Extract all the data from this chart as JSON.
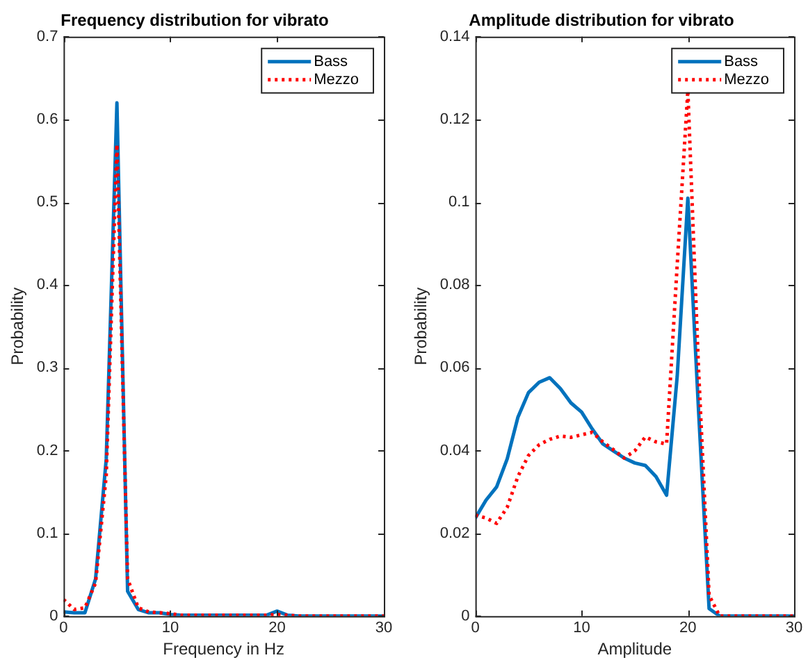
{
  "chart_data": [
    {
      "type": "line",
      "title": "Frequency distribution for vibrato",
      "xlabel": "Frequency in Hz",
      "ylabel": "Probability",
      "x": [
        0,
        1,
        2,
        3,
        4,
        5,
        6,
        7,
        8,
        9,
        10,
        11,
        12,
        13,
        14,
        15,
        16,
        17,
        18,
        19,
        20,
        21,
        22,
        23,
        24,
        25,
        26,
        27,
        28,
        29,
        30
      ],
      "xlim": [
        0,
        30
      ],
      "xticks": [
        0,
        10,
        20,
        30
      ],
      "ylim": [
        0,
        0.7
      ],
      "yticks": [
        0,
        0.1,
        0.2,
        0.3,
        0.4,
        0.5,
        0.6,
        0.7
      ],
      "grid": false,
      "legend": "top right",
      "marker": "none",
      "series": [
        {
          "name": "Bass",
          "color": "#0072bd",
          "line_style": "solid",
          "values": [
            0.005,
            0.004,
            0.004,
            0.045,
            0.19,
            0.62,
            0.03,
            0.008,
            0.004,
            0.004,
            0.002,
            0.001,
            0.001,
            0.001,
            0.001,
            0.001,
            0.001,
            0.001,
            0.001,
            0.001,
            0.006,
            0.001,
            0,
            0,
            0,
            0,
            0,
            0,
            0,
            0,
            0
          ]
        },
        {
          "name": "Mezzo",
          "color": "#ff0000",
          "line_style": "dotted",
          "values": [
            0.02,
            0.008,
            0.01,
            0.04,
            0.17,
            0.57,
            0.045,
            0.01,
            0.005,
            0.004,
            0.003,
            0.001,
            0.001,
            0.001,
            0.001,
            0.001,
            0.001,
            0.001,
            0.001,
            0.001,
            0.002,
            0.001,
            0,
            0,
            0,
            0,
            0,
            0,
            0,
            0,
            0
          ]
        }
      ]
    },
    {
      "type": "line",
      "title": "Amplitude distribution for vibrato",
      "xlabel": "Amplitude",
      "ylabel": "Probability",
      "x": [
        0,
        1,
        2,
        3,
        4,
        5,
        6,
        7,
        8,
        9,
        10,
        11,
        12,
        13,
        14,
        15,
        16,
        17,
        18,
        19,
        20,
        21,
        22,
        23,
        24,
        25,
        26,
        27,
        28,
        29,
        30
      ],
      "xlim": [
        0,
        30
      ],
      "xticks": [
        0,
        10,
        20,
        30
      ],
      "ylim": [
        0,
        0.14
      ],
      "yticks": [
        0,
        0.02,
        0.04,
        0.06,
        0.08,
        0.1,
        0.12,
        0.14
      ],
      "grid": false,
      "legend": "top right",
      "marker": "none",
      "series": [
        {
          "name": "Bass",
          "color": "#0072bd",
          "line_style": "solid",
          "values": [
            0.0237,
            0.028,
            0.0312,
            0.038,
            0.048,
            0.054,
            0.0565,
            0.0576,
            0.055,
            0.0515,
            0.0493,
            0.0452,
            0.0416,
            0.0399,
            0.0382,
            0.037,
            0.0364,
            0.0337,
            0.0292,
            0.058,
            0.101,
            0.05,
            0.0018,
            0,
            0,
            0,
            0,
            0,
            0,
            0,
            0
          ]
        },
        {
          "name": "Mezzo",
          "color": "#ff0000",
          "line_style": "dotted",
          "values": [
            0.0244,
            0.0237,
            0.0224,
            0.0263,
            0.0337,
            0.0388,
            0.0414,
            0.0427,
            0.0435,
            0.0432,
            0.0438,
            0.0444,
            0.0421,
            0.0402,
            0.0382,
            0.0399,
            0.0433,
            0.0421,
            0.0416,
            0.085,
            0.127,
            0.06,
            0.005,
            0,
            0,
            0,
            0,
            0,
            0,
            0,
            0
          ]
        }
      ]
    }
  ]
}
